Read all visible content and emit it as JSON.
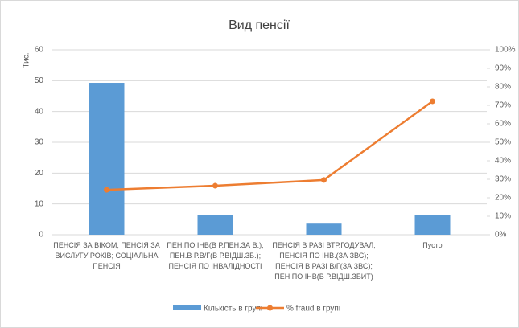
{
  "chart_data": {
    "type": "bar_line",
    "title": "Вид пенсії",
    "y_label": "Тис.",
    "categories": [
      "ПЕНСІЯ ЗА ВІКОМ; ПЕНСІЯ ЗА\nВИСЛУГУ РОКІВ; СОЦІАЛЬНА\nПЕНСІЯ",
      "ПЕН.ПО ІНВ(В Р.ПЕН.ЗА В.);\nПЕН.В Р.В/Г(В Р.ВІДШ.ЗБ.);\nПЕНСІЯ ПО ІНВАЛІДНОСТІ",
      "ПЕНСІЯ В РАЗІ ВТР.ГОДУВАЛ;\nПЕНСІЯ ПО ІНВ.(ЗА ЗВС);\nПЕНСІЯ В РАЗІ В/Г(ЗА ЗВС);\nПЕН ПО ІНВ(В Р.ВІДШ.ЗБИТ)",
      "Пусто"
    ],
    "series": [
      {
        "name": "Кількість в групі",
        "color": "#5b9bd5",
        "kind": "bar",
        "values": [
          49.3,
          6.5,
          3.6,
          6.3
        ]
      },
      {
        "name": "% fraud в групі",
        "color": "#ed7d31",
        "kind": "line",
        "axis": "y2",
        "values": [
          24.3,
          26.5,
          29.6,
          72.2
        ]
      }
    ],
    "ylim": [
      0,
      60
    ],
    "yticks": [
      0,
      10,
      20,
      30,
      40,
      50,
      60
    ],
    "y2lim": [
      0,
      100
    ],
    "y2ticks": [
      {
        "value": 0,
        "label": "0%"
      },
      {
        "value": 10,
        "label": "10%"
      },
      {
        "value": 20,
        "label": "20%"
      },
      {
        "value": 30,
        "label": "30%"
      },
      {
        "value": 40,
        "label": "40%"
      },
      {
        "value": 50,
        "label": "50%"
      },
      {
        "value": 60,
        "label": "60%"
      },
      {
        "value": 70,
        "label": "70%"
      },
      {
        "value": 80,
        "label": "80%"
      },
      {
        "value": 90,
        "label": "90%"
      },
      {
        "value": 100,
        "label": "100%"
      }
    ],
    "grid": true,
    "legend": "bottom"
  }
}
